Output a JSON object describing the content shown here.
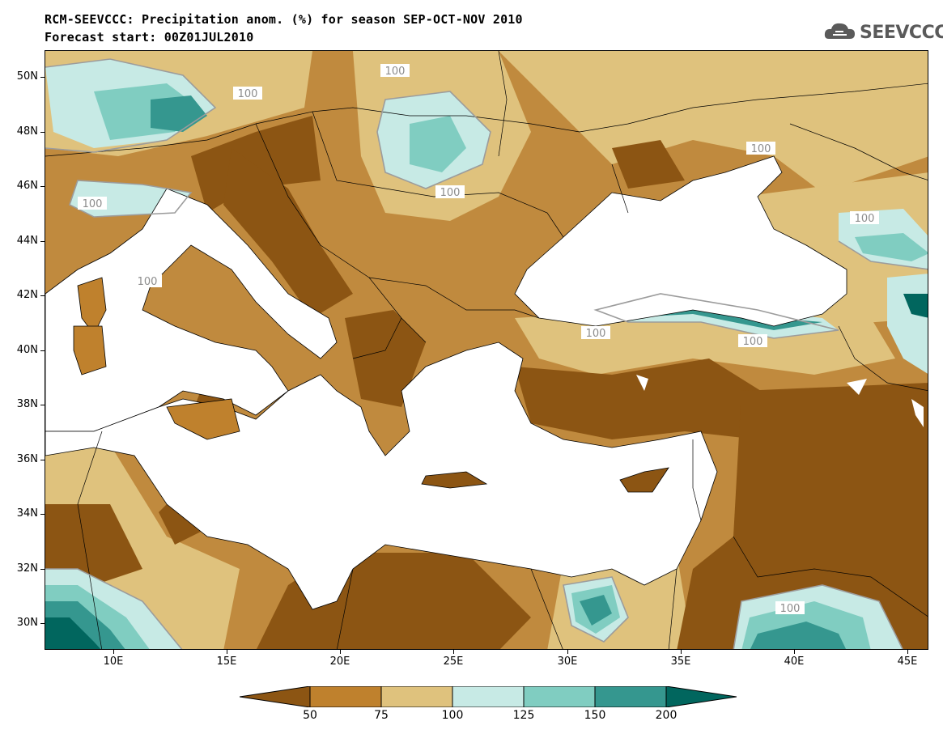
{
  "title_line1": "RCM-SEEVCCC: Precipitation anom. (%) for season SEP-OCT-NOV 2010",
  "title_line2": "Forecast start: 00Z01JUL2010",
  "logo_text": "SEEVCCC",
  "logo_icon": "cloud-icon",
  "lat_labels": [
    "50N",
    "48N",
    "46N",
    "44N",
    "42N",
    "40N",
    "38N",
    "36N",
    "34N",
    "32N",
    "30N"
  ],
  "lon_labels": [
    "10E",
    "15E",
    "20E",
    "25E",
    "30E",
    "35E",
    "40E",
    "45E"
  ],
  "contour_label": "100",
  "colorbar_labels": [
    "50",
    "75",
    "100",
    "125",
    "150",
    "200"
  ],
  "colors": {
    "lt50": "#8c5513",
    "c50_75": "#bf812d",
    "c75_100": "#dfc27d",
    "c100_125": "#c7eae5",
    "c125_150": "#80cdc1",
    "c150_200": "#35978f",
    "gt200": "#01665e",
    "sea": "#ffffff"
  }
}
